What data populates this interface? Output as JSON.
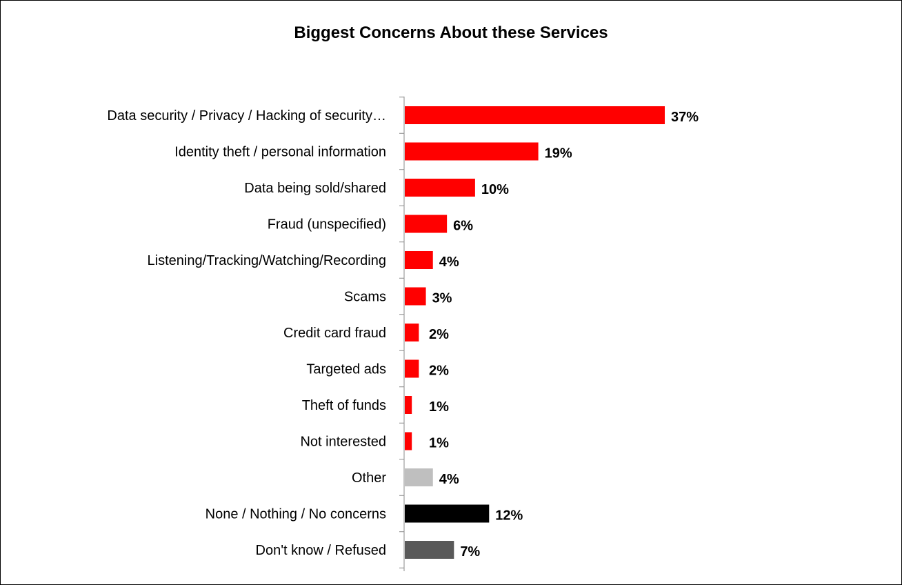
{
  "chart_data": {
    "type": "bar",
    "orientation": "horizontal",
    "title": "Biggest Concerns About these Services",
    "categories": [
      "Data security / Privacy / Hacking of security…",
      "Identity theft / personal information",
      "Data being sold/shared",
      "Fraud (unspecified)",
      "Listening/Tracking/Watching/Recording",
      "Scams",
      "Credit card fraud",
      "Targeted ads",
      "Theft of funds",
      "Not interested",
      "Other",
      "None / Nothing / No concerns",
      "Don't know / Refused"
    ],
    "values": [
      37,
      19,
      10,
      6,
      4,
      3,
      2,
      2,
      1,
      1,
      4,
      12,
      7
    ],
    "value_labels": [
      "37%",
      "19%",
      "10%",
      "6%",
      "4%",
      "3%",
      "2%",
      "2%",
      "1%",
      "1%",
      "4%",
      "12%",
      "7%"
    ],
    "bar_colors": [
      "#ff0000",
      "#ff0000",
      "#ff0000",
      "#ff0000",
      "#ff0000",
      "#ff0000",
      "#ff0000",
      "#ff0000",
      "#ff0000",
      "#ff0000",
      "#bfbfbf",
      "#000000",
      "#595959"
    ],
    "xlabel": "",
    "ylabel": "",
    "xlim": [
      0,
      40
    ],
    "grid": false,
    "legend": "none"
  }
}
